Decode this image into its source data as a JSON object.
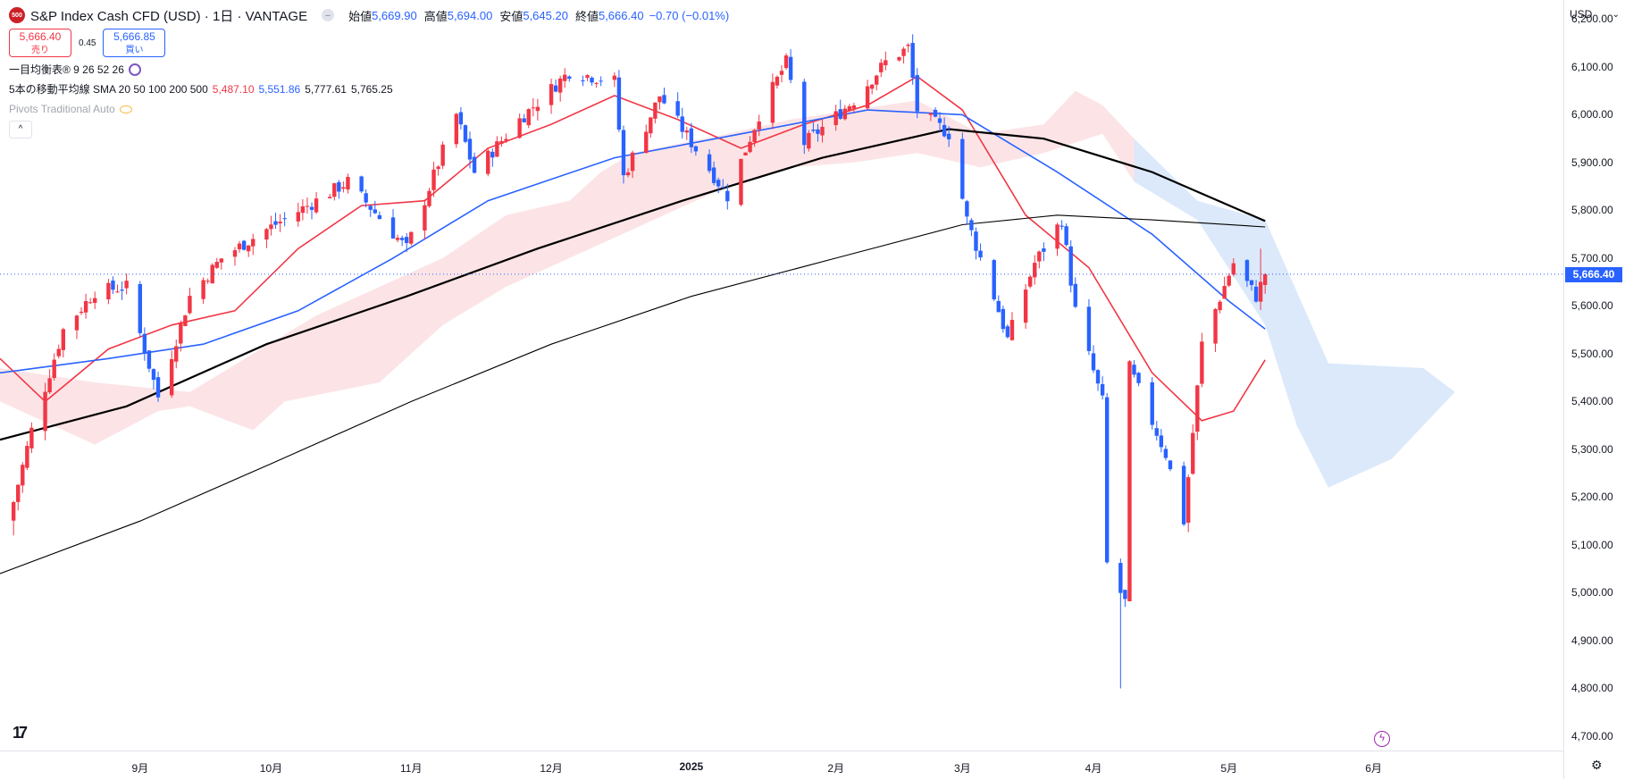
{
  "header": {
    "logo_text": "500",
    "title": "S&P Index Cash CFD (USD) · 1日 · VANTAGE",
    "ohlc": [
      {
        "label": "始値",
        "value": "5,669.90"
      },
      {
        "label": "高値",
        "value": "5,694.00"
      },
      {
        "label": "安値",
        "value": "5,645.20"
      },
      {
        "label": "終値",
        "value": "5,666.40"
      }
    ],
    "change": "−0.70 (−0.01%)"
  },
  "quote": {
    "sell_price": "5,666.40",
    "sell_label": "売り",
    "spread": "0.45",
    "buy_price": "5,666.85",
    "buy_label": "買い"
  },
  "indicators": {
    "ichimoku": "一目均衡表® 9 26 52 26",
    "sma_label": "5本の移動平均線 SMA 20 50 100 200 500",
    "sma_values": [
      "5,487.10",
      "5,551.86",
      "5,777.61",
      "5,765.25"
    ],
    "pivots": "Pivots Traditional Auto"
  },
  "currency": "USD",
  "last_price_tag": "5,666.40",
  "colors": {
    "up": "#f23645",
    "down": "#2962ff",
    "sma20": "#f23645",
    "sma50": "#2962ff",
    "sma100": "#000000",
    "sma200": "#000000",
    "cloud_bull": "#fce4e6",
    "cloud_bear": "#dbe9fb"
  },
  "chart_data": {
    "type": "candlestick",
    "y_ticks": [
      "6,200.00",
      "6,100.00",
      "6,000.00",
      "5,900.00",
      "5,800.00",
      "5,700.00",
      "5,600.00",
      "5,500.00",
      "5,400.00",
      "5,300.00",
      "5,200.00",
      "5,100.00",
      "5,000.00",
      "4,900.00",
      "4,800.00",
      "4,700.00"
    ],
    "ylim": [
      4670,
      6240
    ],
    "x_ticks": [
      {
        "label": "9月",
        "date": "2024-09-02"
      },
      {
        "label": "10月",
        "date": "2024-10-01"
      },
      {
        "label": "11月",
        "date": "2024-11-01"
      },
      {
        "label": "12月",
        "date": "2024-12-02"
      },
      {
        "label": "2025",
        "date": "2025-01-02",
        "bold": true
      },
      {
        "label": "2月",
        "date": "2025-02-03"
      },
      {
        "label": "3月",
        "date": "2025-03-03"
      },
      {
        "label": "4月",
        "date": "2025-04-01"
      },
      {
        "label": "5月",
        "date": "2025-05-01"
      },
      {
        "label": "6月",
        "date": "2025-06-02"
      }
    ],
    "x_range": [
      "2024-08-02",
      "2025-07-14"
    ],
    "last_price": 5666.4,
    "candles_keypoints": [
      [
        "2024-08-05",
        5190
      ],
      [
        "2024-08-09",
        5340
      ],
      [
        "2024-08-16",
        5550
      ],
      [
        "2024-08-23",
        5630
      ],
      [
        "2024-08-30",
        5640
      ],
      [
        "2024-09-06",
        5410
      ],
      [
        "2024-09-13",
        5620
      ],
      [
        "2024-09-20",
        5700
      ],
      [
        "2024-09-30",
        5760
      ],
      [
        "2024-10-11",
        5820
      ],
      [
        "2024-10-18",
        5860
      ],
      [
        "2024-10-31",
        5720
      ],
      [
        "2024-11-11",
        6000
      ],
      [
        "2024-11-15",
        5880
      ],
      [
        "2024-11-25",
        5990
      ],
      [
        "2024-12-06",
        6090
      ],
      [
        "2024-12-16",
        6070
      ],
      [
        "2024-12-18",
        5870
      ],
      [
        "2024-12-26",
        6040
      ],
      [
        "2025-01-10",
        5830
      ],
      [
        "2025-01-17",
        6000
      ],
      [
        "2025-01-23",
        6110
      ],
      [
        "2025-01-27",
        5940
      ],
      [
        "2025-02-07",
        6030
      ],
      [
        "2025-02-14",
        6110
      ],
      [
        "2025-02-19",
        6140
      ],
      [
        "2025-02-21",
        6010
      ],
      [
        "2025-02-28",
        5960
      ],
      [
        "2025-03-04",
        5780
      ],
      [
        "2025-03-10",
        5620
      ],
      [
        "2025-03-13",
        5530
      ],
      [
        "2025-03-19",
        5690
      ],
      [
        "2025-03-25",
        5780
      ],
      [
        "2025-03-28",
        5590
      ],
      [
        "2025-04-03",
        5400
      ],
      [
        "2025-04-04",
        5060
      ],
      [
        "2025-04-08",
        4980
      ],
      [
        "2025-04-09",
        5470
      ],
      [
        "2025-04-17",
        5290
      ],
      [
        "2025-04-21",
        5150
      ],
      [
        "2025-04-25",
        5520
      ],
      [
        "2025-05-02",
        5690
      ],
      [
        "2025-05-07",
        5620
      ],
      [
        "2025-05-09",
        5666.4
      ]
    ],
    "wick_extremes": [
      {
        "date": "2024-08-05",
        "low": 5120
      },
      {
        "date": "2025-02-19",
        "high": 6150
      },
      {
        "date": "2025-04-07",
        "low": 4800
      },
      {
        "date": "2025-05-08",
        "high": 5720
      }
    ],
    "series": [
      {
        "name": "SMA 20",
        "points": [
          [
            "2024-08-02",
            5490
          ],
          [
            "2024-08-12",
            5400
          ],
          [
            "2024-08-26",
            5510
          ],
          [
            "2024-09-09",
            5560
          ],
          [
            "2024-09-23",
            5590
          ],
          [
            "2024-10-07",
            5720
          ],
          [
            "2024-10-21",
            5810
          ],
          [
            "2024-11-04",
            5820
          ],
          [
            "2024-11-18",
            5930
          ],
          [
            "2024-12-02",
            5980
          ],
          [
            "2024-12-16",
            6040
          ],
          [
            "2024-12-30",
            5990
          ],
          [
            "2025-01-13",
            5930
          ],
          [
            "2025-01-27",
            5980
          ],
          [
            "2025-02-10",
            6020
          ],
          [
            "2025-02-21",
            6080
          ],
          [
            "2025-03-03",
            6010
          ],
          [
            "2025-03-17",
            5790
          ],
          [
            "2025-03-31",
            5680
          ],
          [
            "2025-04-14",
            5460
          ],
          [
            "2025-04-25",
            5360
          ],
          [
            "2025-05-02",
            5380
          ],
          [
            "2025-05-09",
            5487.1
          ]
        ]
      },
      {
        "name": "SMA 50",
        "points": [
          [
            "2024-08-02",
            5460
          ],
          [
            "2024-08-26",
            5490
          ],
          [
            "2024-09-16",
            5520
          ],
          [
            "2024-10-07",
            5590
          ],
          [
            "2024-10-28",
            5700
          ],
          [
            "2024-11-18",
            5820
          ],
          [
            "2024-12-16",
            5910
          ],
          [
            "2025-01-13",
            5960
          ],
          [
            "2025-02-10",
            6010
          ],
          [
            "2025-03-03",
            6000
          ],
          [
            "2025-03-24",
            5880
          ],
          [
            "2025-04-14",
            5750
          ],
          [
            "2025-05-01",
            5610
          ],
          [
            "2025-05-09",
            5551.86
          ]
        ]
      },
      {
        "name": "SMA 100",
        "points": [
          [
            "2024-08-02",
            5320
          ],
          [
            "2024-08-30",
            5390
          ],
          [
            "2024-09-30",
            5520
          ],
          [
            "2024-10-31",
            5620
          ],
          [
            "2024-11-29",
            5720
          ],
          [
            "2024-12-31",
            5820
          ],
          [
            "2025-01-31",
            5910
          ],
          [
            "2025-02-28",
            5970
          ],
          [
            "2025-03-21",
            5950
          ],
          [
            "2025-04-14",
            5880
          ],
          [
            "2025-05-09",
            5777.61
          ]
        ]
      },
      {
        "name": "SMA 200",
        "points": [
          [
            "2024-08-02",
            5040
          ],
          [
            "2024-09-02",
            5150
          ],
          [
            "2024-10-01",
            5270
          ],
          [
            "2024-11-01",
            5400
          ],
          [
            "2024-12-02",
            5520
          ],
          [
            "2025-01-02",
            5620
          ],
          [
            "2025-02-03",
            5700
          ],
          [
            "2025-03-03",
            5770
          ],
          [
            "2025-03-24",
            5790
          ],
          [
            "2025-04-14",
            5780
          ],
          [
            "2025-05-09",
            5765.25
          ]
        ]
      }
    ],
    "cloud": {
      "upper": [
        [
          "2024-08-02",
          5470
        ],
        [
          "2024-08-23",
          5440
        ],
        [
          "2024-09-13",
          5420
        ],
        [
          "2024-09-27",
          5500
        ],
        [
          "2024-10-11",
          5580
        ],
        [
          "2024-10-25",
          5640
        ],
        [
          "2024-11-08",
          5700
        ],
        [
          "2024-11-22",
          5790
        ],
        [
          "2024-12-06",
          5820
        ],
        [
          "2024-12-13",
          5880
        ],
        [
          "2024-12-20",
          5920
        ],
        [
          "2025-01-10",
          5960
        ],
        [
          "2025-01-24",
          5990
        ],
        [
          "2025-02-07",
          6010
        ],
        [
          "2025-02-21",
          6030
        ],
        [
          "2025-03-07",
          5960
        ],
        [
          "2025-03-21",
          5980
        ],
        [
          "2025-03-28",
          6050
        ],
        [
          "2025-04-03",
          6020
        ],
        [
          "2025-04-10",
          5950
        ],
        [
          "2025-04-24",
          5820
        ],
        [
          "2025-05-09",
          5780
        ],
        [
          "2025-05-23",
          5480
        ],
        [
          "2025-06-13",
          5470
        ],
        [
          "2025-06-20",
          5420
        ]
      ],
      "lower": [
        [
          "2024-08-02",
          5400
        ],
        [
          "2024-08-23",
          5310
        ],
        [
          "2024-09-06",
          5380
        ],
        [
          "2024-09-13",
          5390
        ],
        [
          "2024-09-27",
          5340
        ],
        [
          "2024-10-04",
          5400
        ],
        [
          "2024-10-25",
          5440
        ],
        [
          "2024-11-08",
          5560
        ],
        [
          "2024-11-22",
          5640
        ],
        [
          "2024-12-06",
          5700
        ],
        [
          "2024-12-20",
          5760
        ],
        [
          "2025-01-10",
          5850
        ],
        [
          "2025-01-24",
          5890
        ],
        [
          "2025-02-07",
          5900
        ],
        [
          "2025-02-21",
          5920
        ],
        [
          "2025-03-07",
          5890
        ],
        [
          "2025-03-21",
          5920
        ],
        [
          "2025-04-03",
          5960
        ],
        [
          "2025-04-10",
          5860
        ],
        [
          "2025-04-24",
          5780
        ],
        [
          "2025-05-09",
          5560
        ],
        [
          "2025-05-16",
          5350
        ],
        [
          "2025-05-23",
          5220
        ],
        [
          "2025-06-06",
          5280
        ],
        [
          "2025-06-20",
          5420
        ]
      ]
    }
  }
}
